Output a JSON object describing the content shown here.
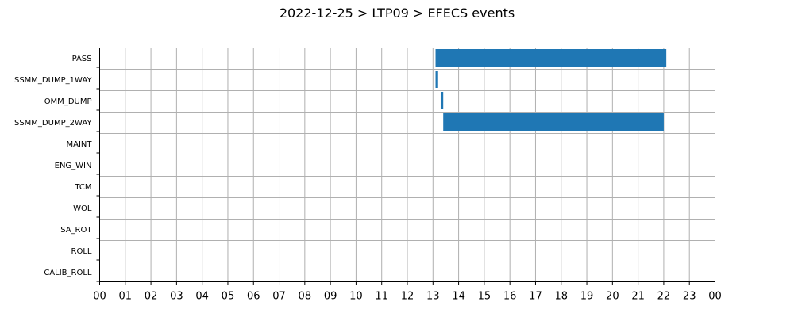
{
  "chart_data": {
    "type": "bar",
    "orientation": "horizontal",
    "title": "2022-12-25 > LTP09 > EFECS events",
    "xlabel": "",
    "ylabel": "",
    "categories": [
      "PASS",
      "SSMM_DUMP_1WAY",
      "OMM_DUMP",
      "SSMM_DUMP_2WAY",
      "MAINT",
      "ENG_WIN",
      "TCM",
      "WOL",
      "SA_ROT",
      "ROLL",
      "CALIB_ROLL"
    ],
    "xticks": [
      "00",
      "01",
      "02",
      "03",
      "04",
      "05",
      "06",
      "07",
      "08",
      "09",
      "10",
      "11",
      "12",
      "13",
      "14",
      "15",
      "16",
      "17",
      "18",
      "19",
      "20",
      "21",
      "22",
      "23",
      "00"
    ],
    "xlim": [
      0,
      24
    ],
    "grid": true,
    "series": [
      {
        "color": "#1f77b4",
        "intervals": [
          {
            "category": "PASS",
            "start": 13.1,
            "end": 22.1
          },
          {
            "category": "SSMM_DUMP_1WAY",
            "start": 13.1,
            "end": 13.2
          },
          {
            "category": "OMM_DUMP",
            "start": 13.3,
            "end": 13.4
          },
          {
            "category": "SSMM_DUMP_2WAY",
            "start": 13.4,
            "end": 22.0
          }
        ]
      }
    ]
  }
}
